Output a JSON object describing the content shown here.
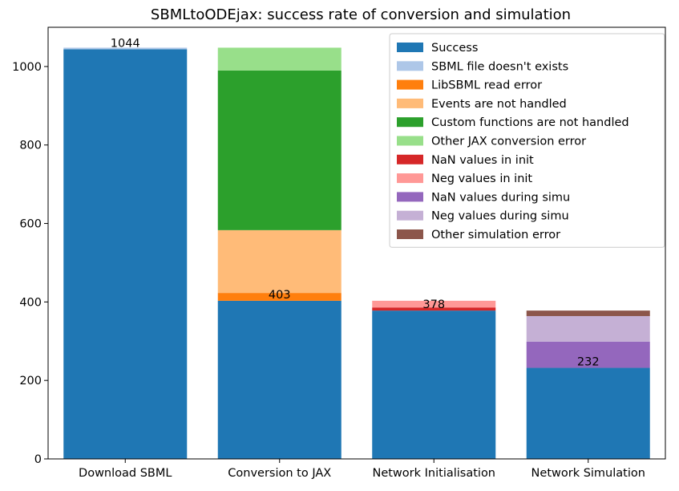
{
  "chart_data": {
    "type": "bar",
    "stacked": true,
    "title": "SBMLtoODEjax: success rate of conversion and simulation",
    "xlabel": "",
    "ylabel": "",
    "ylim": [
      0,
      1100
    ],
    "yticks": [
      0,
      200,
      400,
      600,
      800,
      1000
    ],
    "categories": [
      "Download SBML",
      "Conversion to JAX",
      "Network Initialisation",
      "Network Simulation"
    ],
    "grid": false,
    "legend_position": "top-right",
    "series": [
      {
        "name": "Success",
        "color": "#1f77b4",
        "values": [
          1044,
          403,
          378,
          232
        ]
      },
      {
        "name": "SBML file doesn't exists",
        "color": "#aec7e8",
        "values": [
          4,
          0,
          0,
          0
        ]
      },
      {
        "name": "LibSBML read error",
        "color": "#ff7f0e",
        "values": [
          0,
          20,
          0,
          0
        ]
      },
      {
        "name": "Events are not handled",
        "color": "#ffbb78",
        "values": [
          0,
          160,
          0,
          0
        ]
      },
      {
        "name": "Custom functions are not handled",
        "color": "#2ca02c",
        "values": [
          0,
          407,
          0,
          0
        ]
      },
      {
        "name": "Other JAX conversion error",
        "color": "#98df8a",
        "values": [
          0,
          58,
          0,
          0
        ]
      },
      {
        "name": "NaN values in init",
        "color": "#d62728",
        "values": [
          0,
          0,
          8,
          0
        ]
      },
      {
        "name": "Neg values in init",
        "color": "#ff9896",
        "values": [
          0,
          0,
          17,
          0
        ]
      },
      {
        "name": "NaN values during simu",
        "color": "#9467bd",
        "values": [
          0,
          0,
          0,
          67
        ]
      },
      {
        "name": "Neg values during simu",
        "color": "#c5b0d5",
        "values": [
          0,
          0,
          0,
          65
        ]
      },
      {
        "name": "Other simulation error",
        "color": "#8c564b",
        "values": [
          0,
          0,
          0,
          14
        ]
      }
    ],
    "data_labels": [
      "1044",
      "403",
      "378",
      "232"
    ]
  }
}
